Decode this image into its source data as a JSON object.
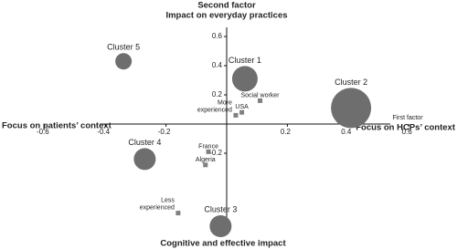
{
  "chart_data": {
    "type": "bubble",
    "top_axis_title": "Second factor",
    "top_axis_subtitle": "Impact on everyday practices",
    "bottom_axis_title": "Cognitive and effective impact",
    "left_axis_title": "Focus on patients’ context",
    "right_axis_title": "Focus on HCPs’ context",
    "x_axis_name": "First factor",
    "xlim": [
      -0.72,
      0.72
    ],
    "ylim": [
      -0.75,
      0.65
    ],
    "xticks": [
      -0.6,
      -0.4,
      -0.2,
      0.2,
      0.4,
      0.6
    ],
    "yticks": [
      -0.2,
      0.2,
      0.4,
      0.6
    ],
    "series": [
      {
        "marker": "circle",
        "color": "#6e6e6e",
        "labels": [
          "Cluster 5",
          "Cluster 1",
          "Cluster 2",
          "Cluster 4",
          "Cluster 3"
        ],
        "x": [
          -0.34,
          0.06,
          0.41,
          -0.27,
          -0.02
        ],
        "values": [
          0.43,
          0.31,
          0.11,
          -0.24,
          -0.7
        ],
        "sizes": [
          9,
          14,
          22,
          12,
          12
        ]
      },
      {
        "marker": "square",
        "color": "#808080",
        "labels": [
          "Social worker",
          "USA",
          "More\nexperienced",
          "France",
          "Algeria",
          "Less\nexperienced"
        ],
        "x": [
          0.11,
          0.05,
          0.03,
          -0.06,
          -0.07,
          -0.16
        ],
        "values": [
          0.16,
          0.08,
          0.06,
          -0.19,
          -0.28,
          -0.61
        ]
      }
    ]
  }
}
